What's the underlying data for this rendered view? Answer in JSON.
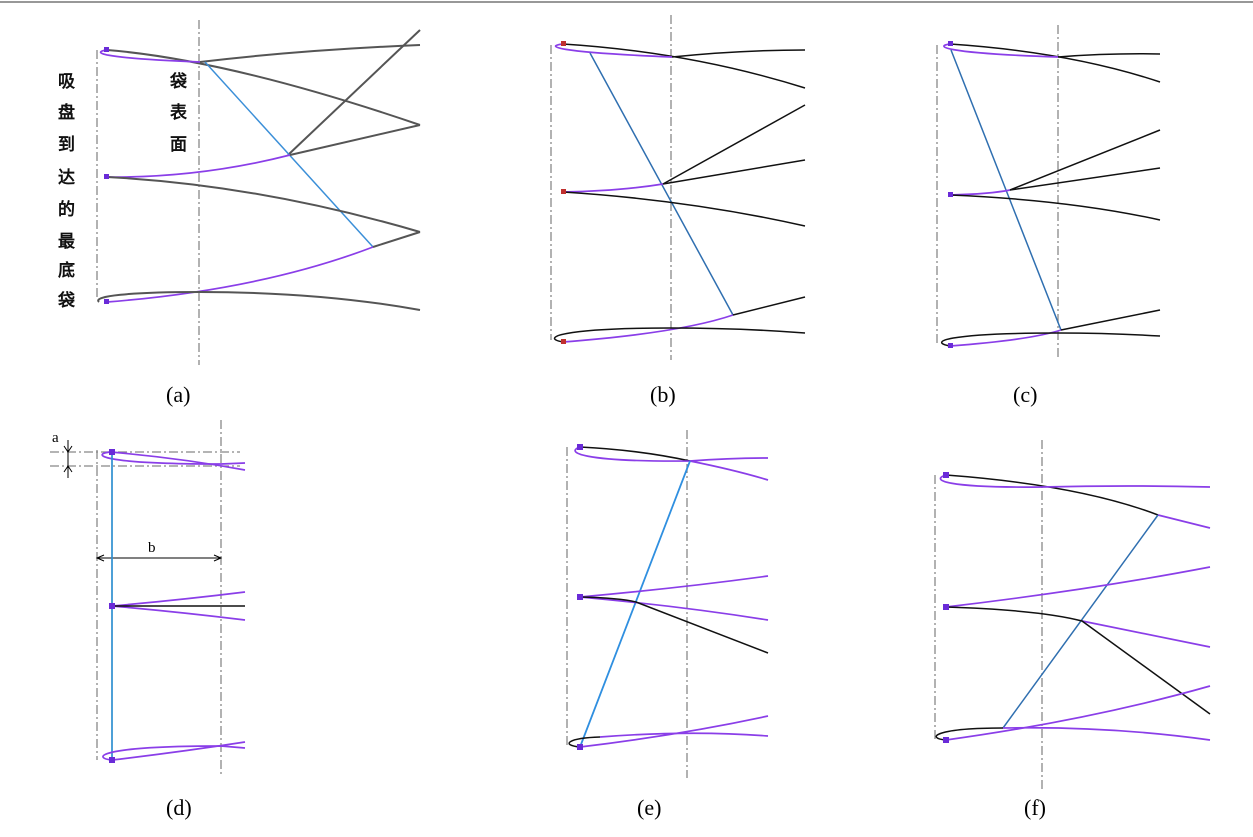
{
  "panels": [
    {
      "caption": "(a)",
      "labels": {
        "left_vertical": [
          "吸",
          "盘",
          "到",
          "达",
          "的",
          "最",
          "底",
          "袋"
        ],
        "center_vertical": [
          "袋",
          "表",
          "面"
        ]
      }
    },
    {
      "caption": "(b)"
    },
    {
      "caption": "(c)"
    },
    {
      "caption": "(d)",
      "dimensions": {
        "a": "a",
        "b": "b"
      }
    },
    {
      "caption": "(e)"
    },
    {
      "caption": "(f)"
    }
  ],
  "colors": {
    "bag_curve": "#8a3ee8",
    "trajectory": "#3b8fd8",
    "edge": "#111111",
    "point": "#6a2bd8"
  }
}
